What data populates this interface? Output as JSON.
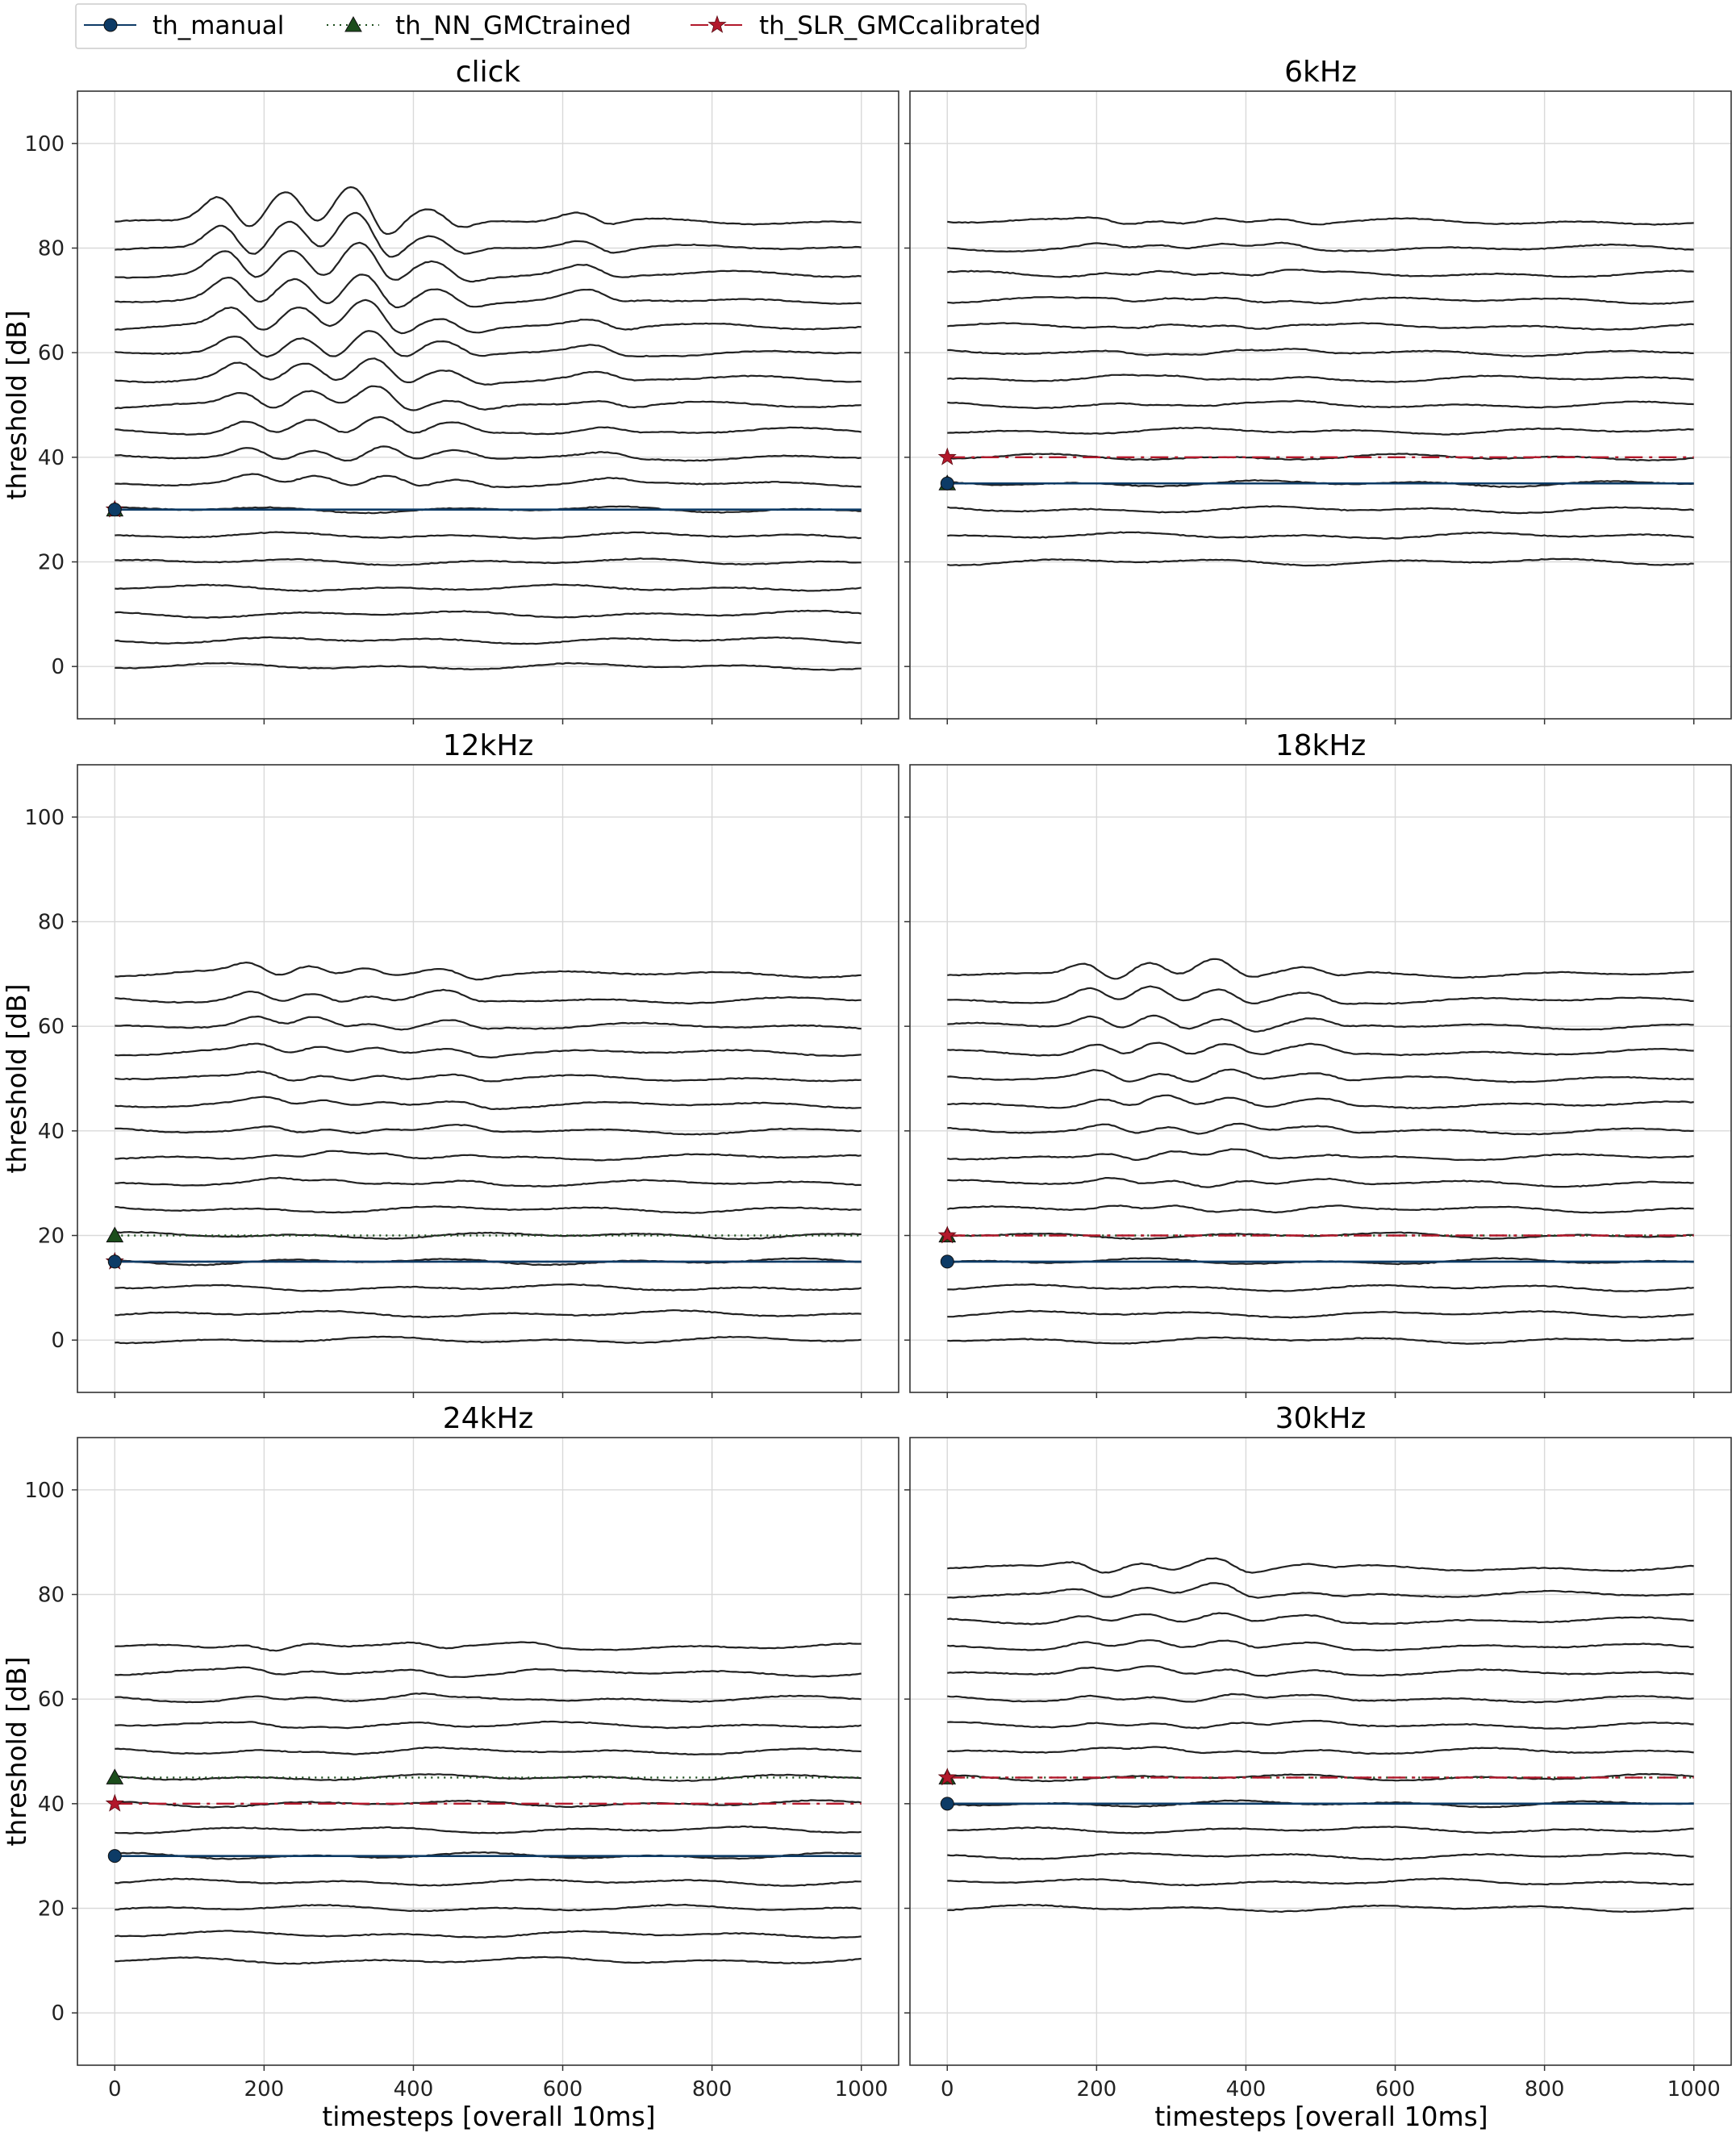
{
  "chart_data": {
    "type": "line",
    "figure": {
      "xlabel": "timesteps [overall 10ms]",
      "ylabel": "threshold [dB]",
      "xlim": [
        -50,
        1050
      ],
      "ylim": [
        -10,
        110
      ],
      "xticks": [
        0,
        200,
        400,
        600,
        800,
        1000
      ],
      "yticks": [
        0,
        20,
        40,
        60,
        80,
        100
      ],
      "grid": true,
      "legend_position": "top-left, above plots",
      "legend": [
        {
          "key": "th_manual",
          "label": "th_manual",
          "color": "#0d3b66",
          "line": "solid",
          "marker": "circle"
        },
        {
          "key": "th_NN_GMCtrained",
          "label": "th_NN_GMCtrained",
          "color": "#1b4d1b",
          "line": "dotted",
          "marker": "triangle"
        },
        {
          "key": "th_SLR_GMCcalibrated",
          "label": "th_SLR_GMCcalibrated",
          "color": "#b2182b",
          "line": "dashdot",
          "marker": "star"
        }
      ]
    },
    "panels": [
      {
        "title": "click",
        "levels": [
          0,
          5,
          10,
          15,
          20,
          25,
          30,
          35,
          40,
          45,
          50,
          55,
          60,
          65,
          70,
          75,
          80,
          85
        ],
        "response_from": 35,
        "amp": 1.0,
        "peaks": [
          [
            140,
            5
          ],
          [
            230,
            5.5
          ],
          [
            320,
            7
          ],
          [
            420,
            3
          ],
          [
            620,
            2
          ]
        ],
        "th_manual": 30,
        "th_NN_GMCtrained": 30,
        "th_SLR_GMCcalibrated": 30
      },
      {
        "title": "6kHz",
        "levels": [
          20,
          25,
          30,
          35,
          40,
          45,
          50,
          55,
          60,
          65,
          70,
          75,
          80,
          85
        ],
        "response_from": 50,
        "amp": 0.35,
        "peaks": [
          [
            200,
            2
          ],
          [
            280,
            2
          ],
          [
            360,
            2
          ],
          [
            450,
            2
          ]
        ],
        "th_manual": 35,
        "th_NN_GMCtrained": 35,
        "th_SLR_GMCcalibrated": 40
      },
      {
        "title": "12kHz",
        "levels": [
          0,
          5,
          10,
          15,
          20,
          25,
          30,
          35,
          40,
          45,
          50,
          55,
          60,
          65,
          70
        ],
        "response_from": 30,
        "amp": 0.6,
        "peaks": [
          [
            180,
            3
          ],
          [
            260,
            3
          ],
          [
            330,
            2
          ],
          [
            440,
            2.5
          ]
        ],
        "th_manual": 15,
        "th_NN_GMCtrained": 20,
        "th_SLR_GMCcalibrated": 15
      },
      {
        "title": "18kHz",
        "levels": [
          0,
          5,
          10,
          15,
          20,
          25,
          30,
          35,
          40,
          45,
          50,
          55,
          60,
          65,
          70
        ],
        "response_from": 25,
        "amp": 0.7,
        "peaks": [
          [
            185,
            3.5
          ],
          [
            270,
            3.5
          ],
          [
            360,
            3.5
          ],
          [
            480,
            2
          ]
        ],
        "th_manual": 15,
        "th_NN_GMCtrained": 20,
        "th_SLR_GMCcalibrated": 20
      },
      {
        "title": "24kHz",
        "levels": [
          10,
          15,
          20,
          25,
          30,
          35,
          40,
          45,
          50,
          55,
          60,
          65,
          70
        ],
        "response_from": 50,
        "amp": 0.45,
        "peaks": [
          [
            175,
            2
          ],
          [
            260,
            1.5
          ],
          [
            400,
            2
          ],
          [
            560,
            1
          ]
        ],
        "th_manual": 30,
        "th_NN_GMCtrained": 45,
        "th_SLR_GMCcalibrated": 40
      },
      {
        "title": "30kHz",
        "levels": [
          20,
          25,
          30,
          35,
          40,
          45,
          50,
          55,
          60,
          65,
          70,
          75,
          80,
          85
        ],
        "response_from": 50,
        "amp": 0.55,
        "peaks": [
          [
            170,
            2.5
          ],
          [
            260,
            2.5
          ],
          [
            360,
            3.5
          ],
          [
            480,
            1.5
          ]
        ],
        "th_manual": 40,
        "th_NN_GMCtrained": 45,
        "th_SLR_GMCcalibrated": 45
      }
    ]
  }
}
